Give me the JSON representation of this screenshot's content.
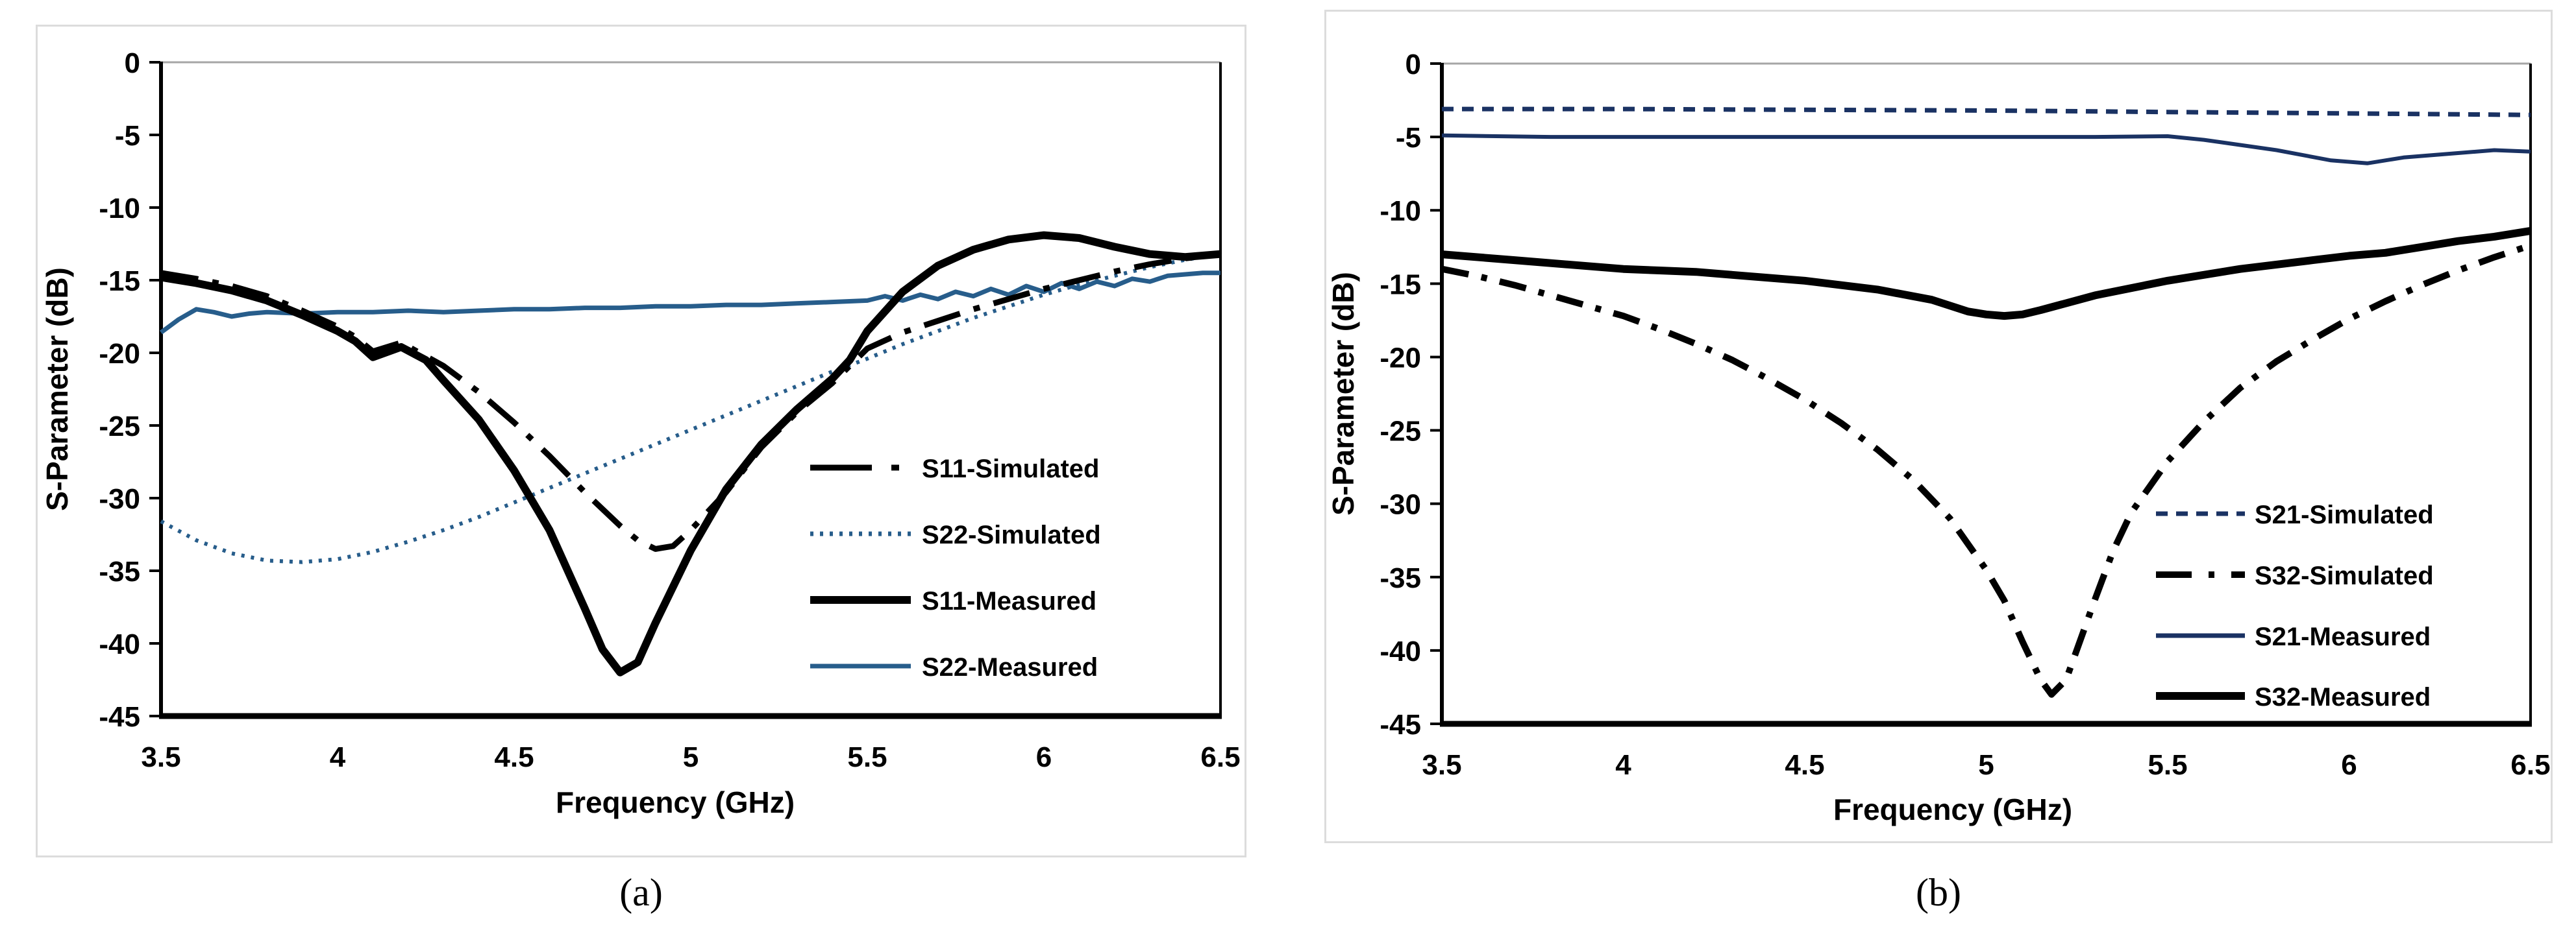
{
  "figure": {
    "captions": {
      "a": "(a)",
      "b": "(b)"
    }
  },
  "colors": {
    "black": "#000000",
    "left_blue": "#275D8B",
    "right_navy": "#1A3263",
    "panel_border": "#DCDCDC",
    "plot_top_gray": "#A6A6A6",
    "background": "#FFFFFF"
  },
  "chart_data": [
    {
      "id": "a",
      "type": "line",
      "title": "",
      "xlabel": "Frequency (GHz)",
      "ylabel": "S-Parameter (dB)",
      "xlim": [
        3.5,
        6.5
      ],
      "ylim": [
        -45,
        0
      ],
      "xticks": [
        3.5,
        4,
        4.5,
        5,
        5.5,
        6,
        6.5
      ],
      "yticks": [
        0,
        -5,
        -10,
        -15,
        -20,
        -25,
        -30,
        -35,
        -40,
        -45
      ],
      "grid": false,
      "legend_position": "inside-right",
      "legend_order": [
        "S11-Simulated",
        "S22-Simulated",
        "S11-Measured",
        "S22-Measured"
      ],
      "series": [
        {
          "name": "S22-Simulated",
          "style": "dotted",
          "color": "#275D8B",
          "width": 6,
          "points": [
            [
              3.5,
              -31.6
            ],
            [
              3.6,
              -32.9
            ],
            [
              3.7,
              -33.8
            ],
            [
              3.8,
              -34.3
            ],
            [
              3.9,
              -34.4
            ],
            [
              4.0,
              -34.2
            ],
            [
              4.1,
              -33.7
            ],
            [
              4.2,
              -33.0
            ],
            [
              4.3,
              -32.2
            ],
            [
              4.4,
              -31.3
            ],
            [
              4.5,
              -30.3
            ],
            [
              4.6,
              -29.3
            ],
            [
              4.7,
              -28.3
            ],
            [
              4.8,
              -27.3
            ],
            [
              4.9,
              -26.3
            ],
            [
              5.0,
              -25.3
            ],
            [
              5.1,
              -24.3
            ],
            [
              5.2,
              -23.3
            ],
            [
              5.3,
              -22.3
            ],
            [
              5.4,
              -21.3
            ],
            [
              5.5,
              -20.4
            ],
            [
              5.6,
              -19.4
            ],
            [
              5.7,
              -18.5
            ],
            [
              5.8,
              -17.6
            ],
            [
              5.9,
              -16.8
            ],
            [
              6.0,
              -16.0
            ],
            [
              6.1,
              -15.3
            ],
            [
              6.2,
              -14.7
            ],
            [
              6.3,
              -14.1
            ],
            [
              6.4,
              -13.6
            ],
            [
              6.5,
              -13.2
            ]
          ]
        },
        {
          "name": "S22-Measured",
          "style": "solid",
          "color": "#275D8B",
          "width": 7,
          "points": [
            [
              3.5,
              -18.6
            ],
            [
              3.55,
              -17.7
            ],
            [
              3.6,
              -17.0
            ],
            [
              3.65,
              -17.2
            ],
            [
              3.7,
              -17.5
            ],
            [
              3.75,
              -17.3
            ],
            [
              3.8,
              -17.2
            ],
            [
              3.9,
              -17.3
            ],
            [
              4.0,
              -17.2
            ],
            [
              4.1,
              -17.2
            ],
            [
              4.2,
              -17.1
            ],
            [
              4.3,
              -17.2
            ],
            [
              4.4,
              -17.1
            ],
            [
              4.5,
              -17.0
            ],
            [
              4.6,
              -17.0
            ],
            [
              4.7,
              -16.9
            ],
            [
              4.8,
              -16.9
            ],
            [
              4.9,
              -16.8
            ],
            [
              5.0,
              -16.8
            ],
            [
              5.1,
              -16.7
            ],
            [
              5.2,
              -16.7
            ],
            [
              5.3,
              -16.6
            ],
            [
              5.4,
              -16.5
            ],
            [
              5.5,
              -16.4
            ],
            [
              5.55,
              -16.1
            ],
            [
              5.6,
              -16.4
            ],
            [
              5.65,
              -16.0
            ],
            [
              5.7,
              -16.3
            ],
            [
              5.75,
              -15.8
            ],
            [
              5.8,
              -16.1
            ],
            [
              5.85,
              -15.6
            ],
            [
              5.9,
              -16.0
            ],
            [
              5.95,
              -15.4
            ],
            [
              6.0,
              -15.8
            ],
            [
              6.05,
              -15.2
            ],
            [
              6.1,
              -15.6
            ],
            [
              6.15,
              -15.1
            ],
            [
              6.2,
              -15.4
            ],
            [
              6.25,
              -14.9
            ],
            [
              6.3,
              -15.1
            ],
            [
              6.35,
              -14.7
            ],
            [
              6.4,
              -14.6
            ],
            [
              6.45,
              -14.5
            ],
            [
              6.5,
              -14.5
            ]
          ]
        },
        {
          "name": "S11-Simulated",
          "style": "dash-dot-long",
          "color": "#000000",
          "width": 9,
          "points": [
            [
              3.5,
              -14.5
            ],
            [
              3.6,
              -14.9
            ],
            [
              3.7,
              -15.4
            ],
            [
              3.8,
              -16.1
            ],
            [
              3.9,
              -17.1
            ],
            [
              4.0,
              -18.2
            ],
            [
              4.05,
              -18.9
            ],
            [
              4.1,
              -19.9
            ],
            [
              4.18,
              -19.3
            ],
            [
              4.3,
              -20.9
            ],
            [
              4.4,
              -22.7
            ],
            [
              4.5,
              -24.8
            ],
            [
              4.6,
              -27.1
            ],
            [
              4.7,
              -29.6
            ],
            [
              4.8,
              -31.9
            ],
            [
              4.85,
              -32.9
            ],
            [
              4.9,
              -33.5
            ],
            [
              4.95,
              -33.3
            ],
            [
              5.0,
              -32.2
            ],
            [
              5.1,
              -29.6
            ],
            [
              5.2,
              -26.5
            ],
            [
              5.3,
              -24.1
            ],
            [
              5.4,
              -22.1
            ],
            [
              5.5,
              -19.7
            ],
            [
              5.6,
              -18.6
            ],
            [
              5.7,
              -17.8
            ],
            [
              5.8,
              -17.0
            ],
            [
              5.9,
              -16.3
            ],
            [
              6.0,
              -15.6
            ],
            [
              6.1,
              -15.0
            ],
            [
              6.2,
              -14.4
            ],
            [
              6.3,
              -13.9
            ],
            [
              6.4,
              -13.5
            ],
            [
              6.5,
              -13.2
            ]
          ]
        },
        {
          "name": "S11-Measured",
          "style": "solid",
          "color": "#000000",
          "width": 12,
          "points": [
            [
              3.5,
              -14.8
            ],
            [
              3.6,
              -15.2
            ],
            [
              3.7,
              -15.7
            ],
            [
              3.8,
              -16.4
            ],
            [
              3.9,
              -17.4
            ],
            [
              4.0,
              -18.5
            ],
            [
              4.05,
              -19.2
            ],
            [
              4.1,
              -20.3
            ],
            [
              4.18,
              -19.6
            ],
            [
              4.25,
              -20.5
            ],
            [
              4.3,
              -21.9
            ],
            [
              4.4,
              -24.6
            ],
            [
              4.5,
              -28.1
            ],
            [
              4.6,
              -32.2
            ],
            [
              4.7,
              -37.6
            ],
            [
              4.75,
              -40.4
            ],
            [
              4.8,
              -42.0
            ],
            [
              4.85,
              -41.3
            ],
            [
              4.9,
              -38.6
            ],
            [
              5.0,
              -33.6
            ],
            [
              5.1,
              -29.4
            ],
            [
              5.2,
              -26.3
            ],
            [
              5.3,
              -23.9
            ],
            [
              5.4,
              -21.8
            ],
            [
              5.45,
              -20.5
            ],
            [
              5.5,
              -18.5
            ],
            [
              5.6,
              -15.8
            ],
            [
              5.7,
              -14.0
            ],
            [
              5.8,
              -12.9
            ],
            [
              5.9,
              -12.2
            ],
            [
              6.0,
              -11.9
            ],
            [
              6.1,
              -12.1
            ],
            [
              6.2,
              -12.7
            ],
            [
              6.3,
              -13.2
            ],
            [
              6.4,
              -13.4
            ],
            [
              6.5,
              -13.2
            ]
          ]
        }
      ]
    },
    {
      "id": "b",
      "type": "line",
      "title": "",
      "xlabel": "Frequency (GHz)",
      "ylabel": "S-Parameter (dB)",
      "xlim": [
        3.5,
        6.5
      ],
      "ylim": [
        -45,
        0
      ],
      "xticks": [
        3.5,
        4,
        4.5,
        5,
        5.5,
        6,
        6.5
      ],
      "yticks": [
        0,
        -5,
        -10,
        -15,
        -20,
        -25,
        -30,
        -35,
        -40,
        -45
      ],
      "grid": false,
      "legend_position": "inside-right",
      "legend_order": [
        "S21-Simulated",
        "S32-Simulated",
        "S21-Measured",
        "S32-Measured"
      ],
      "series": [
        {
          "name": "S32-Simulated",
          "style": "dash-dot",
          "color": "#000000",
          "width": 10,
          "points": [
            [
              3.5,
              -14.0
            ],
            [
              3.6,
              -14.5
            ],
            [
              3.7,
              -15.1
            ],
            [
              3.8,
              -15.8
            ],
            [
              3.9,
              -16.5
            ],
            [
              4.0,
              -17.2
            ],
            [
              4.1,
              -18.1
            ],
            [
              4.2,
              -19.1
            ],
            [
              4.3,
              -20.2
            ],
            [
              4.4,
              -21.5
            ],
            [
              4.5,
              -22.9
            ],
            [
              4.6,
              -24.5
            ],
            [
              4.7,
              -26.3
            ],
            [
              4.8,
              -28.4
            ],
            [
              4.9,
              -31.0
            ],
            [
              5.0,
              -34.5
            ],
            [
              5.05,
              -36.6
            ],
            [
              5.1,
              -39.4
            ],
            [
              5.15,
              -42.0
            ],
            [
              5.18,
              -43.0
            ],
            [
              5.22,
              -42.0
            ],
            [
              5.3,
              -36.5
            ],
            [
              5.35,
              -33.2
            ],
            [
              5.4,
              -30.6
            ],
            [
              5.5,
              -27.1
            ],
            [
              5.6,
              -24.4
            ],
            [
              5.7,
              -22.1
            ],
            [
              5.8,
              -20.3
            ],
            [
              5.9,
              -18.8
            ],
            [
              6.0,
              -17.4
            ],
            [
              6.1,
              -16.2
            ],
            [
              6.2,
              -15.1
            ],
            [
              6.3,
              -14.1
            ],
            [
              6.4,
              -13.2
            ],
            [
              6.5,
              -12.4
            ]
          ]
        },
        {
          "name": "S32-Measured",
          "style": "solid",
          "color": "#000000",
          "width": 12,
          "points": [
            [
              3.5,
              -13.0
            ],
            [
              3.7,
              -13.4
            ],
            [
              3.9,
              -13.8
            ],
            [
              4.0,
              -14.0
            ],
            [
              4.1,
              -14.1
            ],
            [
              4.2,
              -14.2
            ],
            [
              4.3,
              -14.4
            ],
            [
              4.5,
              -14.8
            ],
            [
              4.7,
              -15.4
            ],
            [
              4.85,
              -16.1
            ],
            [
              4.95,
              -16.9
            ],
            [
              5.0,
              -17.1
            ],
            [
              5.05,
              -17.2
            ],
            [
              5.1,
              -17.1
            ],
            [
              5.15,
              -16.8
            ],
            [
              5.3,
              -15.8
            ],
            [
              5.5,
              -14.8
            ],
            [
              5.7,
              -14.0
            ],
            [
              5.9,
              -13.4
            ],
            [
              6.0,
              -13.1
            ],
            [
              6.1,
              -12.9
            ],
            [
              6.2,
              -12.5
            ],
            [
              6.3,
              -12.1
            ],
            [
              6.4,
              -11.8
            ],
            [
              6.5,
              -11.4
            ]
          ]
        },
        {
          "name": "S21-Measured",
          "style": "solid",
          "color": "#1A3263",
          "width": 6,
          "points": [
            [
              3.5,
              -4.9
            ],
            [
              3.8,
              -5.0
            ],
            [
              4.2,
              -5.0
            ],
            [
              4.6,
              -5.0
            ],
            [
              5.0,
              -5.0
            ],
            [
              5.3,
              -5.0
            ],
            [
              5.5,
              -4.95
            ],
            [
              5.6,
              -5.2
            ],
            [
              5.8,
              -5.9
            ],
            [
              5.95,
              -6.6
            ],
            [
              6.05,
              -6.8
            ],
            [
              6.15,
              -6.4
            ],
            [
              6.3,
              -6.1
            ],
            [
              6.4,
              -5.9
            ],
            [
              6.5,
              -6.0
            ]
          ]
        },
        {
          "name": "S21-Simulated",
          "style": "dashed",
          "color": "#1A3263",
          "width": 7,
          "points": [
            [
              3.5,
              -3.1
            ],
            [
              4.0,
              -3.1
            ],
            [
              4.5,
              -3.15
            ],
            [
              5.0,
              -3.2
            ],
            [
              5.5,
              -3.3
            ],
            [
              6.0,
              -3.4
            ],
            [
              6.5,
              -3.5
            ]
          ]
        }
      ]
    }
  ]
}
